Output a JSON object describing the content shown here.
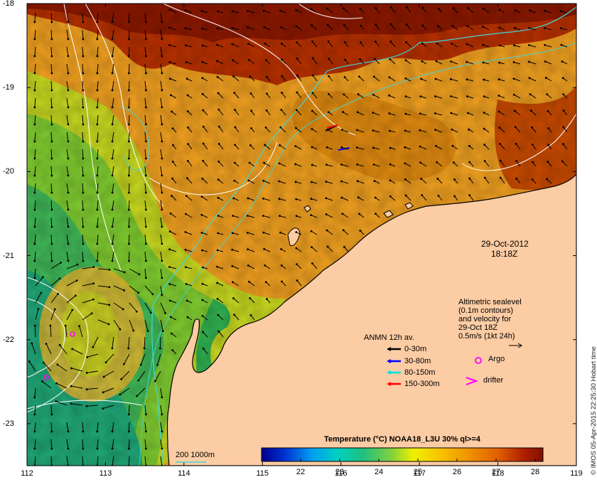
{
  "map": {
    "date_label": "29-Oct-2012",
    "time_label": "18:18Z",
    "x_ticks": [
      "112",
      "113",
      "114",
      "115",
      "116",
      "117",
      "118",
      "119"
    ],
    "y_ticks": [
      "-18",
      "-19",
      "-20",
      "-21",
      "-22",
      "-23"
    ],
    "lon_range": [
      112,
      119
    ],
    "lat_range": [
      -23.5,
      -18
    ]
  },
  "sealevel_note": {
    "lines": [
      "Altimetric sealevel",
      "(0.1m contours)",
      "and velocity for",
      "29-Oct 18Z",
      "0.5m/s (1kt 24h)"
    ]
  },
  "legend": {
    "title": "ANMN 12h av.",
    "items": [
      {
        "label": "0-30m",
        "color": "#000000"
      },
      {
        "label": "30-80m",
        "color": "#0000ff"
      },
      {
        "label": "80-150m",
        "color": "#00e0e0"
      },
      {
        "label": "150-300m",
        "color": "#ff0000"
      }
    ],
    "argo_label": "Argo",
    "drifter_label": "drifter",
    "argo_color": "#ff00ff",
    "drifter_color": "#ff00ff"
  },
  "isobath_label": "200  1000m",
  "colorbar": {
    "title": "Temperature (°C) NOAA18_L3U 30% ql>=4",
    "ticks": [
      "22",
      "23",
      "24",
      "25",
      "26",
      "27",
      "28"
    ],
    "range": [
      21.0,
      28.2
    ]
  },
  "credit": "© IMOS 05-Apr-2015 22:25:30 Hobart time",
  "colors": {
    "land": "#fccca4",
    "coast": "#000000",
    "isobath": "#40d8d8",
    "contour": "#ffffff"
  }
}
